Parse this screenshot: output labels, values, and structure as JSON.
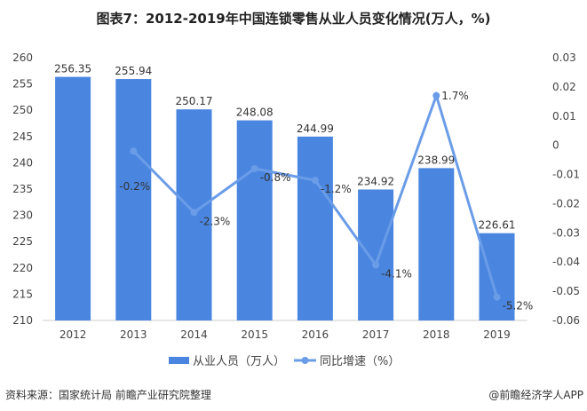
{
  "title": "图表7：2012-2019年中国连锁零售从业人员变化情况(万人，%)",
  "source": "资料来源：国家统计局 前瞻产业研究院整理",
  "brand": "@前瞻经济学人APP",
  "chart_data": {
    "type": "bar+line",
    "categories": [
      "2012",
      "2013",
      "2014",
      "2015",
      "2016",
      "2017",
      "2018",
      "2019"
    ],
    "series": [
      {
        "name": "从业人员（万人）",
        "type": "bar",
        "axis": "left",
        "color": "#4a86e0",
        "values": [
          256.35,
          255.94,
          250.17,
          248.08,
          244.99,
          234.92,
          238.99,
          226.61
        ],
        "labels": [
          "256.35",
          "255.94",
          "250.17",
          "248.08",
          "244.99",
          "234.92",
          "238.99",
          "226.61"
        ]
      },
      {
        "name": "同比增速（%）",
        "type": "line",
        "axis": "right",
        "color": "#6a9ce8",
        "values": [
          null,
          -0.002,
          -0.023,
          -0.008,
          -0.012,
          -0.041,
          0.017,
          -0.052
        ],
        "labels": [
          "",
          "-0.2%",
          "-2.3%",
          "-0.8%",
          "-1.2%",
          "-4.1%",
          "1.7%",
          "-5.2%"
        ]
      }
    ],
    "left_axis": {
      "min": 210,
      "max": 260,
      "ticks": [
        "210",
        "215",
        "220",
        "225",
        "230",
        "235",
        "240",
        "245",
        "250",
        "255",
        "260"
      ]
    },
    "right_axis": {
      "min": -0.06,
      "max": 0.03,
      "ticks": [
        "-0.06",
        "-0.05",
        "-0.04",
        "-0.03",
        "-0.02",
        "-0.01",
        "0",
        "0.01",
        "0.02",
        "0.03"
      ]
    },
    "grid": false,
    "legend": "bottom"
  }
}
